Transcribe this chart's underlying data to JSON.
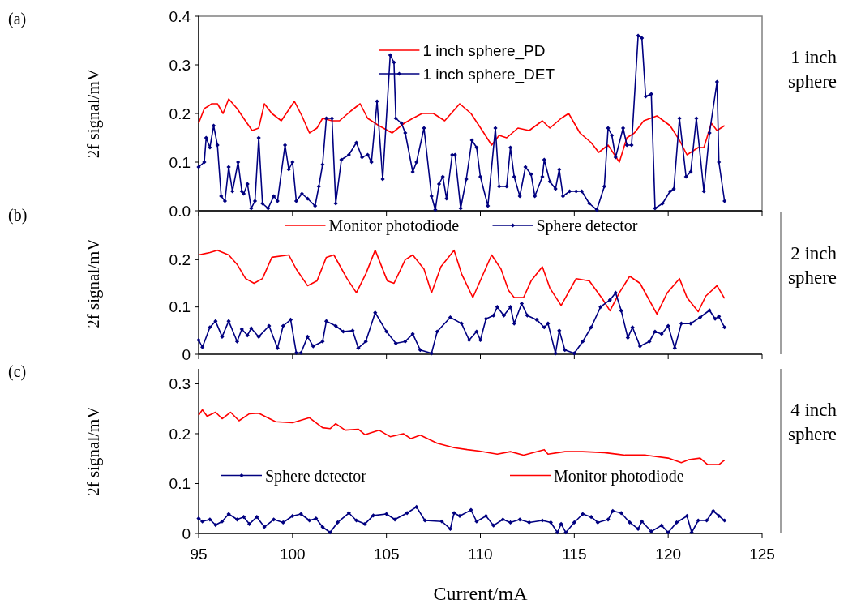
{
  "chart_data": [
    {
      "type": "line",
      "ylabel": "2f signal/mV",
      "annotations": [
        "(a)",
        "1 inch sphere"
      ],
      "xlim": [
        95,
        125
      ],
      "xticks": [
        95,
        100,
        105,
        110,
        115,
        120,
        125
      ],
      "ylim": [
        0,
        0.4
      ],
      "yticks": [
        {
          "value": 0,
          "label": "0.0"
        },
        0.1,
        0.2,
        0.3,
        0.4
      ],
      "tick_labels": "y",
      "legend": "top right",
      "series": [
        {
          "name": "1 inch sphere_PD",
          "color": "#ff0000",
          "marker": "none",
          "x": [
            95.0,
            95.3,
            95.7,
            96.0,
            96.3,
            96.6,
            97.05,
            97.4,
            97.85,
            98.2,
            98.5,
            98.9,
            99.4,
            100.1,
            100.5,
            100.9,
            101.3,
            101.6,
            102.1,
            102.5,
            103.1,
            103.6,
            104.0,
            104.6,
            105.3,
            105.95,
            106.4,
            106.9,
            107.5,
            108.1,
            108.9,
            109.5,
            110.1,
            110.6,
            111.0,
            111.4,
            112.0,
            112.6,
            113.3,
            113.7,
            114.3,
            114.7,
            115.3,
            115.9,
            116.3,
            116.8,
            117.4,
            117.8,
            118.2,
            118.7,
            119.4,
            120.1,
            120.6,
            121.0,
            121.6,
            121.9,
            122.3,
            122.6,
            123.0
          ],
          "values": [
            0.18,
            0.21,
            0.22,
            0.22,
            0.2,
            0.23,
            0.21,
            0.19,
            0.165,
            0.17,
            0.22,
            0.2,
            0.185,
            0.225,
            0.195,
            0.16,
            0.17,
            0.19,
            0.185,
            0.185,
            0.205,
            0.22,
            0.19,
            0.175,
            0.16,
            0.18,
            0.19,
            0.2,
            0.2,
            0.185,
            0.22,
            0.2,
            0.165,
            0.135,
            0.155,
            0.15,
            0.17,
            0.165,
            0.185,
            0.17,
            0.19,
            0.2,
            0.16,
            0.14,
            0.12,
            0.135,
            0.1,
            0.15,
            0.16,
            0.185,
            0.195,
            0.175,
            0.145,
            0.115,
            0.13,
            0.13,
            0.18,
            0.165,
            0.175
          ]
        },
        {
          "name": "1 inch sphere_DET",
          "color": "#000080",
          "marker": "diamond",
          "x": [
            95.0,
            95.3,
            95.4,
            95.6,
            95.8,
            96.0,
            96.2,
            96.4,
            96.6,
            96.8,
            97.1,
            97.3,
            97.4,
            97.6,
            97.8,
            98.0,
            98.2,
            98.4,
            98.7,
            99.0,
            99.2,
            99.6,
            99.8,
            100.0,
            100.2,
            100.5,
            100.8,
            101.2,
            101.4,
            101.6,
            101.8,
            102.1,
            102.3,
            102.6,
            103.0,
            103.4,
            103.7,
            104.0,
            104.2,
            104.5,
            104.8,
            105.2,
            105.4,
            105.5,
            105.8,
            106.0,
            106.4,
            106.6,
            107.0,
            107.4,
            107.6,
            107.8,
            108.0,
            108.2,
            108.5,
            108.65,
            108.95,
            109.25,
            109.55,
            109.8,
            110.0,
            110.4,
            110.8,
            111.0,
            111.4,
            111.6,
            111.8,
            112.1,
            112.4,
            112.7,
            112.9,
            113.3,
            113.4,
            113.7,
            114.0,
            114.2,
            114.4,
            114.75,
            115.1,
            115.4,
            115.8,
            116.2,
            116.6,
            116.8,
            117.0,
            117.2,
            117.6,
            117.8,
            118.05,
            118.4,
            118.6,
            118.8,
            119.1,
            119.3,
            119.7,
            120.1,
            120.3,
            120.6,
            120.95,
            121.2,
            121.5,
            121.9,
            122.2,
            122.6,
            122.7,
            123.0
          ],
          "values": [
            0.09,
            0.1,
            0.15,
            0.13,
            0.175,
            0.135,
            0.03,
            0.02,
            0.09,
            0.04,
            0.1,
            0.04,
            0.035,
            0.055,
            0.005,
            0.02,
            0.15,
            0.015,
            0.005,
            0.03,
            0.02,
            0.135,
            0.085,
            0.1,
            0.02,
            0.035,
            0.025,
            0.01,
            0.05,
            0.095,
            0.19,
            0.19,
            0.015,
            0.105,
            0.115,
            0.14,
            0.11,
            0.115,
            0.1,
            0.225,
            0.065,
            0.32,
            0.305,
            0.19,
            0.18,
            0.16,
            0.08,
            0.1,
            0.17,
            0.03,
            0.002,
            0.055,
            0.07,
            0.025,
            0.115,
            0.115,
            0.005,
            0.065,
            0.145,
            0.13,
            0.07,
            0.01,
            0.17,
            0.05,
            0.05,
            0.13,
            0.07,
            0.03,
            0.09,
            0.075,
            0.03,
            0.07,
            0.105,
            0.06,
            0.045,
            0.085,
            0.03,
            0.04,
            0.04,
            0.04,
            0.015,
            0.002,
            0.05,
            0.17,
            0.155,
            0.11,
            0.17,
            0.135,
            0.135,
            0.36,
            0.355,
            0.235,
            0.24,
            0.005,
            0.015,
            0.04,
            0.045,
            0.19,
            0.07,
            0.08,
            0.19,
            0.04,
            0.16,
            0.265,
            0.1,
            0.02
          ]
        }
      ]
    },
    {
      "type": "line",
      "ylabel": "2f signal/mV",
      "annotations": [
        "(b)",
        "2 inch sphere"
      ],
      "xlim": [
        95,
        125
      ],
      "xticks": [
        95,
        100,
        105,
        110,
        115,
        120,
        125
      ],
      "ylim": [
        0,
        0.3
      ],
      "yticks": [
        0,
        0.1,
        0.2
      ],
      "tick_labels": "y",
      "legend": "top",
      "series": [
        {
          "name": "Monitor photodiode",
          "color": "#ff0000",
          "marker": "none",
          "x": [
            95.0,
            95.6,
            96.0,
            96.6,
            97.05,
            97.5,
            97.95,
            98.4,
            98.9,
            99.8,
            100.2,
            100.8,
            101.3,
            101.8,
            102.2,
            102.9,
            103.4,
            103.9,
            104.4,
            105.05,
            105.4,
            106.0,
            106.4,
            107.0,
            107.4,
            107.9,
            108.6,
            109.0,
            109.6,
            110.1,
            110.6,
            111.1,
            111.5,
            111.8,
            112.3,
            112.7,
            113.3,
            113.7,
            114.3,
            115.1,
            115.8,
            116.5,
            116.9,
            117.4,
            117.95,
            118.5,
            119.4,
            119.95,
            120.6,
            121.0,
            121.6,
            122.0,
            122.6,
            123.0
          ],
          "values": [
            0.21,
            0.215,
            0.22,
            0.21,
            0.19,
            0.16,
            0.15,
            0.16,
            0.205,
            0.21,
            0.18,
            0.145,
            0.155,
            0.205,
            0.21,
            0.16,
            0.13,
            0.17,
            0.22,
            0.155,
            0.15,
            0.2,
            0.21,
            0.18,
            0.13,
            0.185,
            0.22,
            0.17,
            0.12,
            0.165,
            0.21,
            0.18,
            0.135,
            0.12,
            0.12,
            0.155,
            0.185,
            0.14,
            0.103,
            0.16,
            0.155,
            0.117,
            0.092,
            0.13,
            0.165,
            0.15,
            0.085,
            0.13,
            0.16,
            0.12,
            0.09,
            0.123,
            0.145,
            0.118
          ]
        },
        {
          "name": "Sphere detector",
          "color": "#000080",
          "marker": "diamond",
          "x": [
            95.0,
            95.2,
            95.6,
            95.9,
            96.25,
            96.6,
            97.05,
            97.3,
            97.6,
            97.8,
            98.2,
            98.75,
            99.2,
            99.5,
            99.9,
            100.2,
            100.45,
            100.8,
            101.1,
            101.6,
            101.8,
            102.3,
            102.7,
            103.2,
            103.5,
            103.9,
            104.4,
            105.0,
            105.5,
            106.0,
            106.4,
            106.8,
            107.4,
            107.7,
            108.4,
            109.0,
            109.4,
            109.8,
            110.0,
            110.3,
            110.7,
            110.9,
            111.25,
            111.6,
            111.8,
            112.2,
            112.5,
            113.0,
            113.4,
            113.6,
            114.0,
            114.2,
            114.5,
            115.0,
            115.45,
            115.9,
            116.4,
            116.9,
            117.2,
            117.5,
            117.85,
            118.1,
            118.5,
            119.0,
            119.3,
            119.65,
            120.0,
            120.35,
            120.7,
            121.2,
            121.7,
            122.2,
            122.5,
            122.7,
            123.0
          ],
          "values": [
            0.03,
            0.015,
            0.057,
            0.07,
            0.037,
            0.07,
            0.027,
            0.053,
            0.04,
            0.055,
            0.037,
            0.06,
            0.013,
            0.06,
            0.073,
            0.003,
            0.003,
            0.037,
            0.017,
            0.027,
            0.07,
            0.06,
            0.048,
            0.05,
            0.013,
            0.027,
            0.088,
            0.048,
            0.023,
            0.027,
            0.043,
            0.009,
            0.002,
            0.048,
            0.078,
            0.065,
            0.03,
            0.048,
            0.03,
            0.075,
            0.082,
            0.1,
            0.082,
            0.1,
            0.065,
            0.107,
            0.082,
            0.073,
            0.057,
            0.065,
            0.002,
            0.05,
            0.009,
            0.002,
            0.027,
            0.057,
            0.1,
            0.115,
            0.13,
            0.092,
            0.035,
            0.057,
            0.017,
            0.027,
            0.048,
            0.043,
            0.06,
            0.013,
            0.065,
            0.065,
            0.078,
            0.093,
            0.075,
            0.08,
            0.057
          ]
        }
      ]
    },
    {
      "type": "line",
      "xlabel": "Current/mA",
      "ylabel": "2f signal/mV",
      "annotations": [
        "(c)",
        "4 inch sphere"
      ],
      "xlim": [
        95,
        125
      ],
      "xticks": [
        95,
        100,
        105,
        110,
        115,
        120,
        125
      ],
      "ylim": [
        0,
        0.33
      ],
      "yticks": [
        0,
        0.1,
        0.2,
        0.3
      ],
      "legend": "center",
      "series": [
        {
          "name": "Sphere detector",
          "color": "#000080",
          "marker": "diamond",
          "x": [
            95.0,
            95.2,
            95.6,
            95.9,
            96.25,
            96.6,
            97.05,
            97.4,
            97.7,
            98.1,
            98.5,
            99.0,
            99.5,
            100.0,
            100.45,
            100.9,
            101.25,
            101.6,
            102.0,
            102.4,
            103.0,
            103.4,
            103.85,
            104.3,
            105.0,
            105.45,
            106.1,
            106.6,
            107.05,
            107.95,
            108.4,
            108.6,
            108.9,
            109.5,
            109.8,
            110.3,
            110.7,
            111.2,
            111.6,
            112.1,
            112.6,
            113.3,
            113.75,
            114.1,
            114.3,
            114.55,
            115.0,
            115.45,
            115.9,
            116.25,
            116.8,
            117.05,
            117.5,
            117.95,
            118.4,
            118.6,
            119.1,
            119.65,
            120.0,
            120.45,
            121.0,
            121.25,
            121.6,
            122.05,
            122.4,
            122.7,
            123.0
          ],
          "values": [
            0.03,
            0.024,
            0.028,
            0.017,
            0.024,
            0.039,
            0.028,
            0.033,
            0.019,
            0.033,
            0.013,
            0.028,
            0.022,
            0.035,
            0.039,
            0.026,
            0.03,
            0.013,
            0.002,
            0.022,
            0.041,
            0.026,
            0.019,
            0.036,
            0.039,
            0.028,
            0.041,
            0.053,
            0.026,
            0.024,
            0.009,
            0.041,
            0.035,
            0.047,
            0.024,
            0.035,
            0.016,
            0.028,
            0.022,
            0.028,
            0.022,
            0.026,
            0.022,
            0.002,
            0.019,
            0.002,
            0.022,
            0.039,
            0.033,
            0.022,
            0.028,
            0.045,
            0.041,
            0.022,
            0.009,
            0.024,
            0.004,
            0.016,
            0.002,
            0.022,
            0.035,
            0.002,
            0.026,
            0.026,
            0.045,
            0.035,
            0.026
          ]
        },
        {
          "name": "Monitor photodiode",
          "color": "#ff0000",
          "marker": "none",
          "x": [
            95.0,
            95.2,
            95.45,
            95.9,
            96.25,
            96.7,
            97.15,
            97.7,
            98.2,
            99.1,
            100.0,
            100.9,
            101.6,
            102.0,
            102.3,
            102.8,
            103.5,
            103.85,
            104.6,
            105.2,
            105.9,
            106.3,
            106.8,
            107.7,
            108.6,
            109.3,
            109.95,
            110.9,
            111.6,
            112.3,
            113.4,
            113.6,
            114.5,
            115.45,
            116.6,
            117.7,
            118.8,
            120.0,
            120.7,
            121.1,
            121.7,
            122.1,
            122.7,
            123.0
          ],
          "values": [
            0.237,
            0.248,
            0.235,
            0.243,
            0.23,
            0.243,
            0.226,
            0.24,
            0.241,
            0.224,
            0.222,
            0.232,
            0.212,
            0.21,
            0.22,
            0.207,
            0.209,
            0.198,
            0.207,
            0.194,
            0.2,
            0.19,
            0.197,
            0.181,
            0.172,
            0.168,
            0.165,
            0.159,
            0.164,
            0.157,
            0.168,
            0.159,
            0.164,
            0.164,
            0.162,
            0.157,
            0.157,
            0.151,
            0.142,
            0.148,
            0.151,
            0.138,
            0.138,
            0.147
          ]
        }
      ]
    }
  ]
}
